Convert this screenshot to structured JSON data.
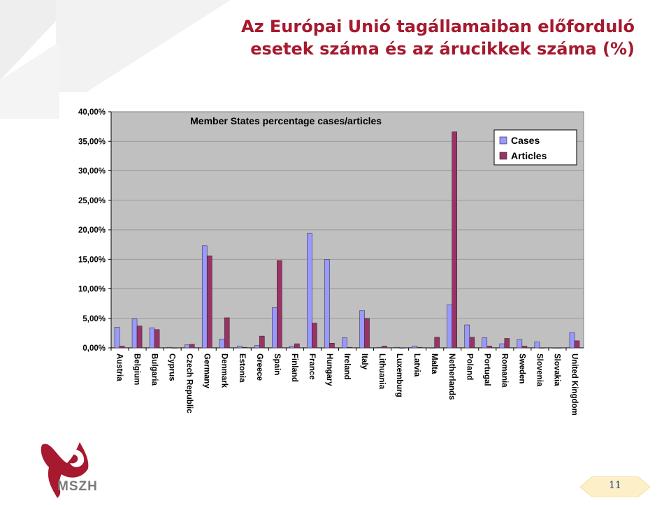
{
  "slide": {
    "title_line1": "Az Európai Unió tagállamaiban előforduló",
    "title_line2": "esetek száma és az árucikkek száma (%)",
    "page_number": "11",
    "logo_text": "MSZH",
    "title_color": "#a6192e"
  },
  "chart_data": {
    "type": "bar",
    "title": "Member States percentage cases/articles",
    "xlabel": "",
    "ylabel": "",
    "ylim": [
      0,
      40
    ],
    "yticks": [
      "0,00%",
      "5,00%",
      "10,00%",
      "15,00%",
      "20,00%",
      "25,00%",
      "30,00%",
      "35,00%",
      "40,00%"
    ],
    "grid": true,
    "legend": "top-right",
    "categories": [
      "Austria",
      "Belgium",
      "Bulgaria",
      "Cyprus",
      "Czech Republic",
      "Germany",
      "Denmark",
      "Estonia",
      "Greece",
      "Spain",
      "Finland",
      "France",
      "Hungary",
      "Ireland",
      "Italy",
      "Lithuania",
      "Luxemburg",
      "Latvia",
      "Malta",
      "Netherlands",
      "Poland",
      "Portugal",
      "Romania",
      "Sweden",
      "Slovenia",
      "Slovakia",
      "United Kingdom"
    ],
    "series": [
      {
        "name": "Cases",
        "color": "#9999ff",
        "values": [
          3.5,
          4.9,
          3.4,
          0.1,
          0.5,
          17.3,
          1.5,
          0.3,
          0.4,
          6.8,
          0.3,
          19.4,
          15.0,
          1.7,
          6.3,
          0.1,
          0.1,
          0.3,
          0.0,
          7.3,
          3.9,
          1.7,
          0.7,
          1.4,
          1.0,
          0.0,
          2.6
        ]
      },
      {
        "name": "Articles",
        "color": "#993366",
        "values": [
          0.3,
          3.7,
          3.1,
          0.0,
          0.6,
          15.6,
          5.1,
          0.1,
          2.0,
          14.8,
          0.7,
          4.2,
          0.8,
          0.1,
          5.0,
          0.3,
          0.0,
          0.1,
          1.8,
          36.6,
          1.8,
          0.3,
          1.6,
          0.3,
          0.0,
          0.0,
          1.2
        ]
      }
    ]
  }
}
